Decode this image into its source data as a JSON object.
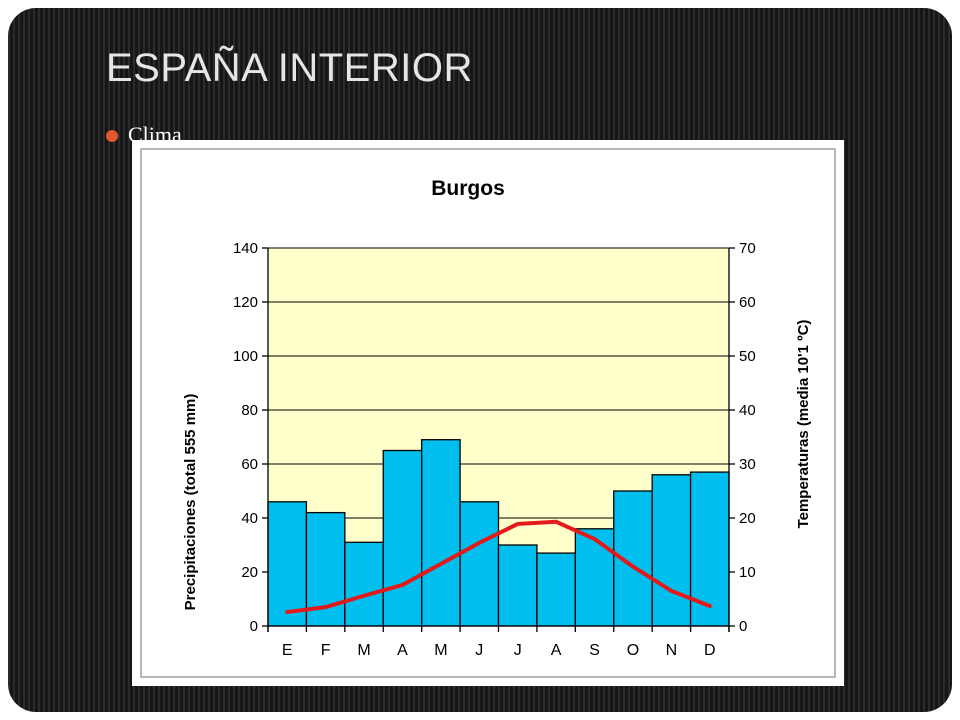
{
  "slide": {
    "title": "ESPAÑA INTERIOR",
    "bullet": "Clima"
  },
  "colors": {
    "bars": "#00bfef",
    "line": "#e41a1a",
    "plot_background": "#ffffcc",
    "bullet": "#e4572e"
  },
  "chart_data": {
    "type": "bar",
    "title": "Burgos",
    "categories": [
      "E",
      "F",
      "M",
      "A",
      "M",
      "J",
      "J",
      "A",
      "S",
      "O",
      "N",
      "D"
    ],
    "ylabel": "Precipitaciones (total 555 mm)",
    "y2label": "Temperaturas (media 10'1 ºC)",
    "ylim": [
      0,
      140
    ],
    "y2lim": [
      0,
      70
    ],
    "yticks": [
      0,
      20,
      40,
      60,
      80,
      100,
      120,
      140
    ],
    "y2ticks": [
      0,
      10,
      20,
      30,
      40,
      50,
      60,
      70
    ],
    "grid": true,
    "series": [
      {
        "type": "bar",
        "axis": "left",
        "values": [
          46,
          42,
          31,
          65,
          69,
          46,
          30,
          27,
          36,
          50,
          56,
          57
        ]
      },
      {
        "type": "line",
        "axis": "right",
        "values": [
          2.6,
          3.5,
          5.6,
          7.6,
          11.5,
          15.4,
          18.9,
          19.3,
          16.1,
          11.0,
          6.5,
          3.7
        ]
      }
    ]
  }
}
